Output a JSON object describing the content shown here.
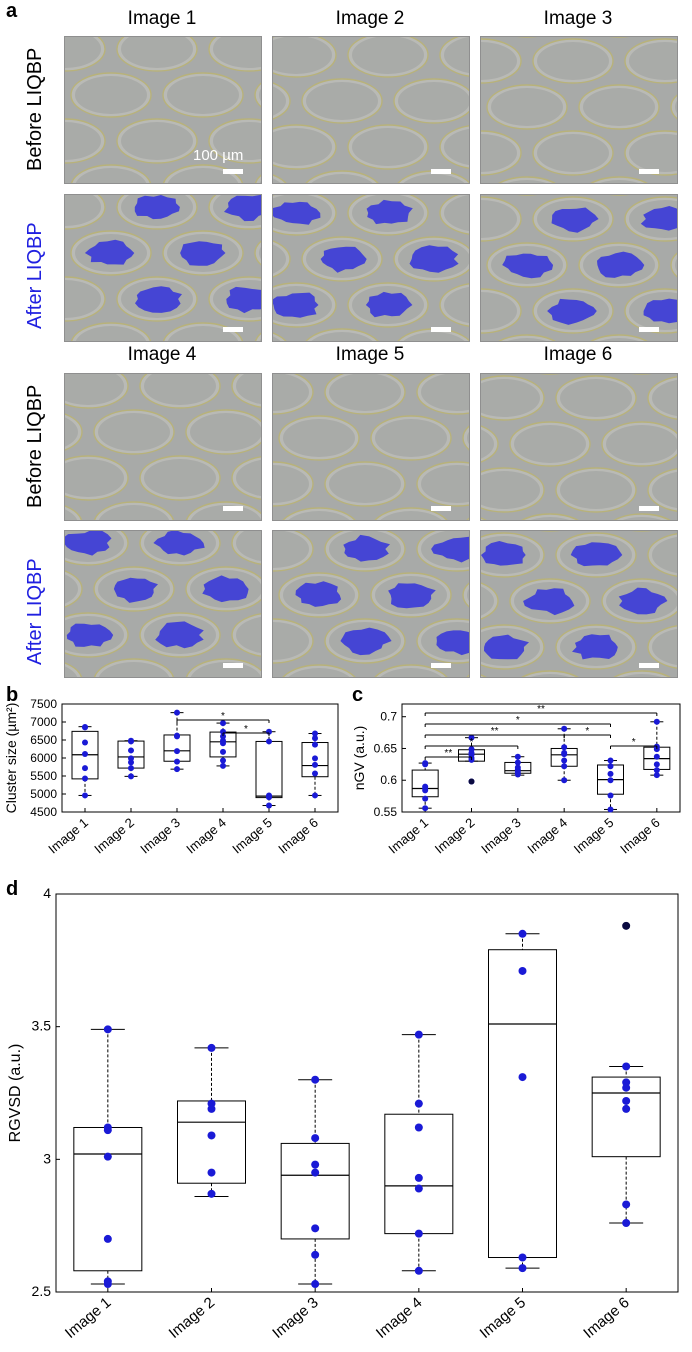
{
  "panel_a": {
    "letter": "a",
    "image_titles": [
      "Image 1",
      "Image 2",
      "Image 3",
      "Image 4",
      "Image 5",
      "Image 6"
    ],
    "row_before": "Before LIQBP",
    "row_after": "After LIQBP",
    "scale_label": "100 µm",
    "after_label_color": "#2020e0",
    "cluster_color": "#3a3ad8"
  },
  "chart_data": [
    {
      "panel": "b",
      "type": "box",
      "categories": [
        "Image 1",
        "Image 2",
        "Image 3",
        "Image 4",
        "Image 5",
        "Image 6"
      ],
      "ylabel": "Cluster size (µm²)",
      "ylim": [
        4500,
        7500
      ],
      "yticks": [
        4500,
        5000,
        5500,
        6000,
        6500,
        7000,
        7500
      ],
      "boxes": [
        {
          "q1": 5420,
          "median": 6090,
          "q3": 6740,
          "wlow": 4960,
          "whigh": 6870
        },
        {
          "q1": 5720,
          "median": 6030,
          "q3": 6470,
          "wlow": 5490,
          "whigh": 6480
        },
        {
          "q1": 5910,
          "median": 6200,
          "q3": 6640,
          "wlow": 5690,
          "whigh": 7260
        },
        {
          "q1": 6030,
          "median": 6450,
          "q3": 6720,
          "wlow": 5780,
          "whigh": 6970
        },
        {
          "q1": 4900,
          "median": 4940,
          "q3": 6460,
          "wlow": 4680,
          "whigh": 6730
        },
        {
          "q1": 5480,
          "median": 5790,
          "q3": 6430,
          "wlow": 4960,
          "whigh": 6680
        }
      ],
      "points": [
        [
          6860,
          6850,
          6430,
          6110,
          5720,
          5430,
          4960
        ],
        [
          6480,
          6460,
          6210,
          5990,
          5880,
          5720,
          5490
        ],
        [
          7260,
          6620,
          6600,
          6190,
          5900,
          5690
        ],
        [
          6970,
          6730,
          6600,
          6480,
          6410,
          6170,
          5930,
          5780
        ],
        [
          6730,
          6460,
          4960,
          4920,
          4910,
          4680
        ],
        [
          6680,
          6550,
          6370,
          5990,
          5810,
          5570,
          4960
        ]
      ],
      "significance": [
        {
          "from": "Image 3",
          "to": "Image 5",
          "label": "*"
        },
        {
          "from": "Image 4",
          "to": "Image 5",
          "label": "*"
        }
      ]
    },
    {
      "panel": "c",
      "type": "box",
      "categories": [
        "Image 1",
        "Image 2",
        "Image 3",
        "Image 4",
        "Image 5",
        "Image 6"
      ],
      "ylabel": "nGV (a.u.)",
      "ylim": [
        0.55,
        0.72
      ],
      "yticks": [
        0.55,
        0.6,
        0.65,
        0.7
      ],
      "boxes": [
        {
          "q1": 0.574,
          "median": 0.587,
          "q3": 0.616,
          "wlow": 0.556,
          "whigh": 0.627
        },
        {
          "q1": 0.63,
          "median": 0.641,
          "q3": 0.648,
          "wlow": 0.63,
          "whigh": 0.667
        },
        {
          "q1": 0.611,
          "median": 0.615,
          "q3": 0.628,
          "wlow": 0.608,
          "whigh": 0.637
        },
        {
          "q1": 0.622,
          "median": 0.64,
          "q3": 0.65,
          "wlow": 0.6,
          "whigh": 0.681
        },
        {
          "q1": 0.578,
          "median": 0.601,
          "q3": 0.624,
          "wlow": 0.554,
          "whigh": 0.631
        },
        {
          "q1": 0.617,
          "median": 0.634,
          "q3": 0.652,
          "wlow": 0.608,
          "whigh": 0.692
        }
      ],
      "points": [
        [
          0.627,
          0.625,
          0.59,
          0.587,
          0.584,
          0.571,
          0.556
        ],
        [
          0.667,
          0.649,
          0.643,
          0.64,
          0.635,
          0.632,
          0.598
        ],
        [
          0.637,
          0.628,
          0.62,
          0.617,
          0.613,
          0.609
        ],
        [
          0.681,
          0.652,
          0.643,
          0.641,
          0.631,
          0.622,
          0.6
        ],
        [
          0.631,
          0.622,
          0.61,
          0.6,
          0.576,
          0.554
        ],
        [
          0.692,
          0.653,
          0.649,
          0.637,
          0.625,
          0.616,
          0.608
        ]
      ],
      "outliers": [
        {
          "category": "Image 2",
          "value": 0.598
        }
      ],
      "significance": [
        {
          "from": "Image 1",
          "to": "Image 6",
          "label": "**"
        },
        {
          "from": "Image 1",
          "to": "Image 5",
          "label": "*"
        },
        {
          "from": "Image 1",
          "to": "Image 4",
          "label": "**"
        },
        {
          "from": "Image 1",
          "to": "Image 3",
          "label": "*"
        },
        {
          "from": "Image 1",
          "to": "Image 2",
          "label": "**"
        },
        {
          "from": "Image 4",
          "to": "Image 5",
          "label": "*"
        },
        {
          "from": "Image 5",
          "to": "Image 6",
          "label": "*"
        }
      ]
    },
    {
      "panel": "d",
      "type": "box",
      "categories": [
        "Image 1",
        "Image 2",
        "Image 3",
        "Image 4",
        "Image 5",
        "Image 6"
      ],
      "ylabel": "RGVSD (a.u.)",
      "ylim": [
        2.5,
        4.0
      ],
      "yticks": [
        2.5,
        3,
        3.5,
        4
      ],
      "boxes": [
        {
          "q1": 2.58,
          "median": 3.02,
          "q3": 3.12,
          "wlow": 2.53,
          "whigh": 3.49
        },
        {
          "q1": 2.91,
          "median": 3.14,
          "q3": 3.22,
          "wlow": 2.86,
          "whigh": 3.42
        },
        {
          "q1": 2.7,
          "median": 2.94,
          "q3": 3.06,
          "wlow": 2.53,
          "whigh": 3.3
        },
        {
          "q1": 2.72,
          "median": 2.9,
          "q3": 3.17,
          "wlow": 2.58,
          "whigh": 3.47
        },
        {
          "q1": 2.63,
          "median": 3.51,
          "q3": 3.79,
          "wlow": 2.59,
          "whigh": 3.85
        },
        {
          "q1": 3.01,
          "median": 3.25,
          "q3": 3.31,
          "wlow": 2.76,
          "whigh": 3.35
        }
      ],
      "points": [
        [
          3.49,
          3.12,
          3.11,
          3.01,
          2.7,
          2.54,
          2.53
        ],
        [
          3.42,
          3.21,
          3.19,
          3.09,
          2.95,
          2.87
        ],
        [
          3.3,
          3.08,
          2.98,
          2.95,
          2.74,
          2.64,
          2.53
        ],
        [
          3.47,
          3.21,
          3.12,
          2.93,
          2.89,
          2.72,
          2.58
        ],
        [
          3.85,
          3.71,
          3.31,
          2.63,
          2.59
        ],
        [
          3.35,
          3.29,
          3.27,
          3.22,
          3.19,
          2.83,
          2.76
        ]
      ],
      "outliers": [
        {
          "category": "Image 6",
          "value": 3.88
        }
      ],
      "significance": []
    }
  ]
}
